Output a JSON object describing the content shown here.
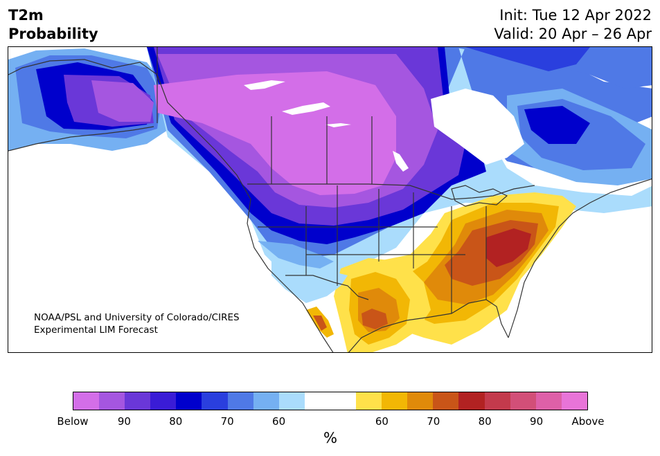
{
  "header": {
    "title_line1": "T2m",
    "title_line2": "Probability",
    "init_label": "Init: Tue 12 Apr 2022",
    "valid_label": "Valid: 20 Apr – 26 Apr"
  },
  "credit": {
    "line1": "NOAA/PSL and University of Colorado/CIRES",
    "line2": "Experimental LIM Forecast"
  },
  "colorbar": {
    "unit": "%",
    "colors": [
      "#d36ee8",
      "#a556e0",
      "#6a37d8",
      "#3a1cd6",
      "#0000cc",
      "#2a3fde",
      "#4f79e6",
      "#75b0f2",
      "#aadcfc",
      "#ffffff",
      "#ffffff",
      "#ffe14a",
      "#f2b705",
      "#e08a0a",
      "#c95518",
      "#b22222",
      "#c33a4c",
      "#d24f78",
      "#de60a8",
      "#e874d8"
    ],
    "ticks": [
      "Below",
      "90",
      "80",
      "70",
      "60",
      "60",
      "70",
      "80",
      "90",
      "Above"
    ]
  },
  "map": {
    "colors": {
      "below_strong": "#d36ee8",
      "below_90": "#a556e0",
      "below_80": "#6a37d8",
      "below_75": "#3a1cd6",
      "below_70": "#0000cc",
      "below_65": "#2a3fde",
      "below_60": "#4f79e6",
      "below_55": "#75b0f2",
      "below_50": "#aadcfc",
      "above_55": "#ffe14a",
      "above_60": "#f2b705",
      "above_65": "#e08a0a",
      "above_70": "#c95518",
      "above_75": "#b22222",
      "border": "#333333"
    }
  }
}
